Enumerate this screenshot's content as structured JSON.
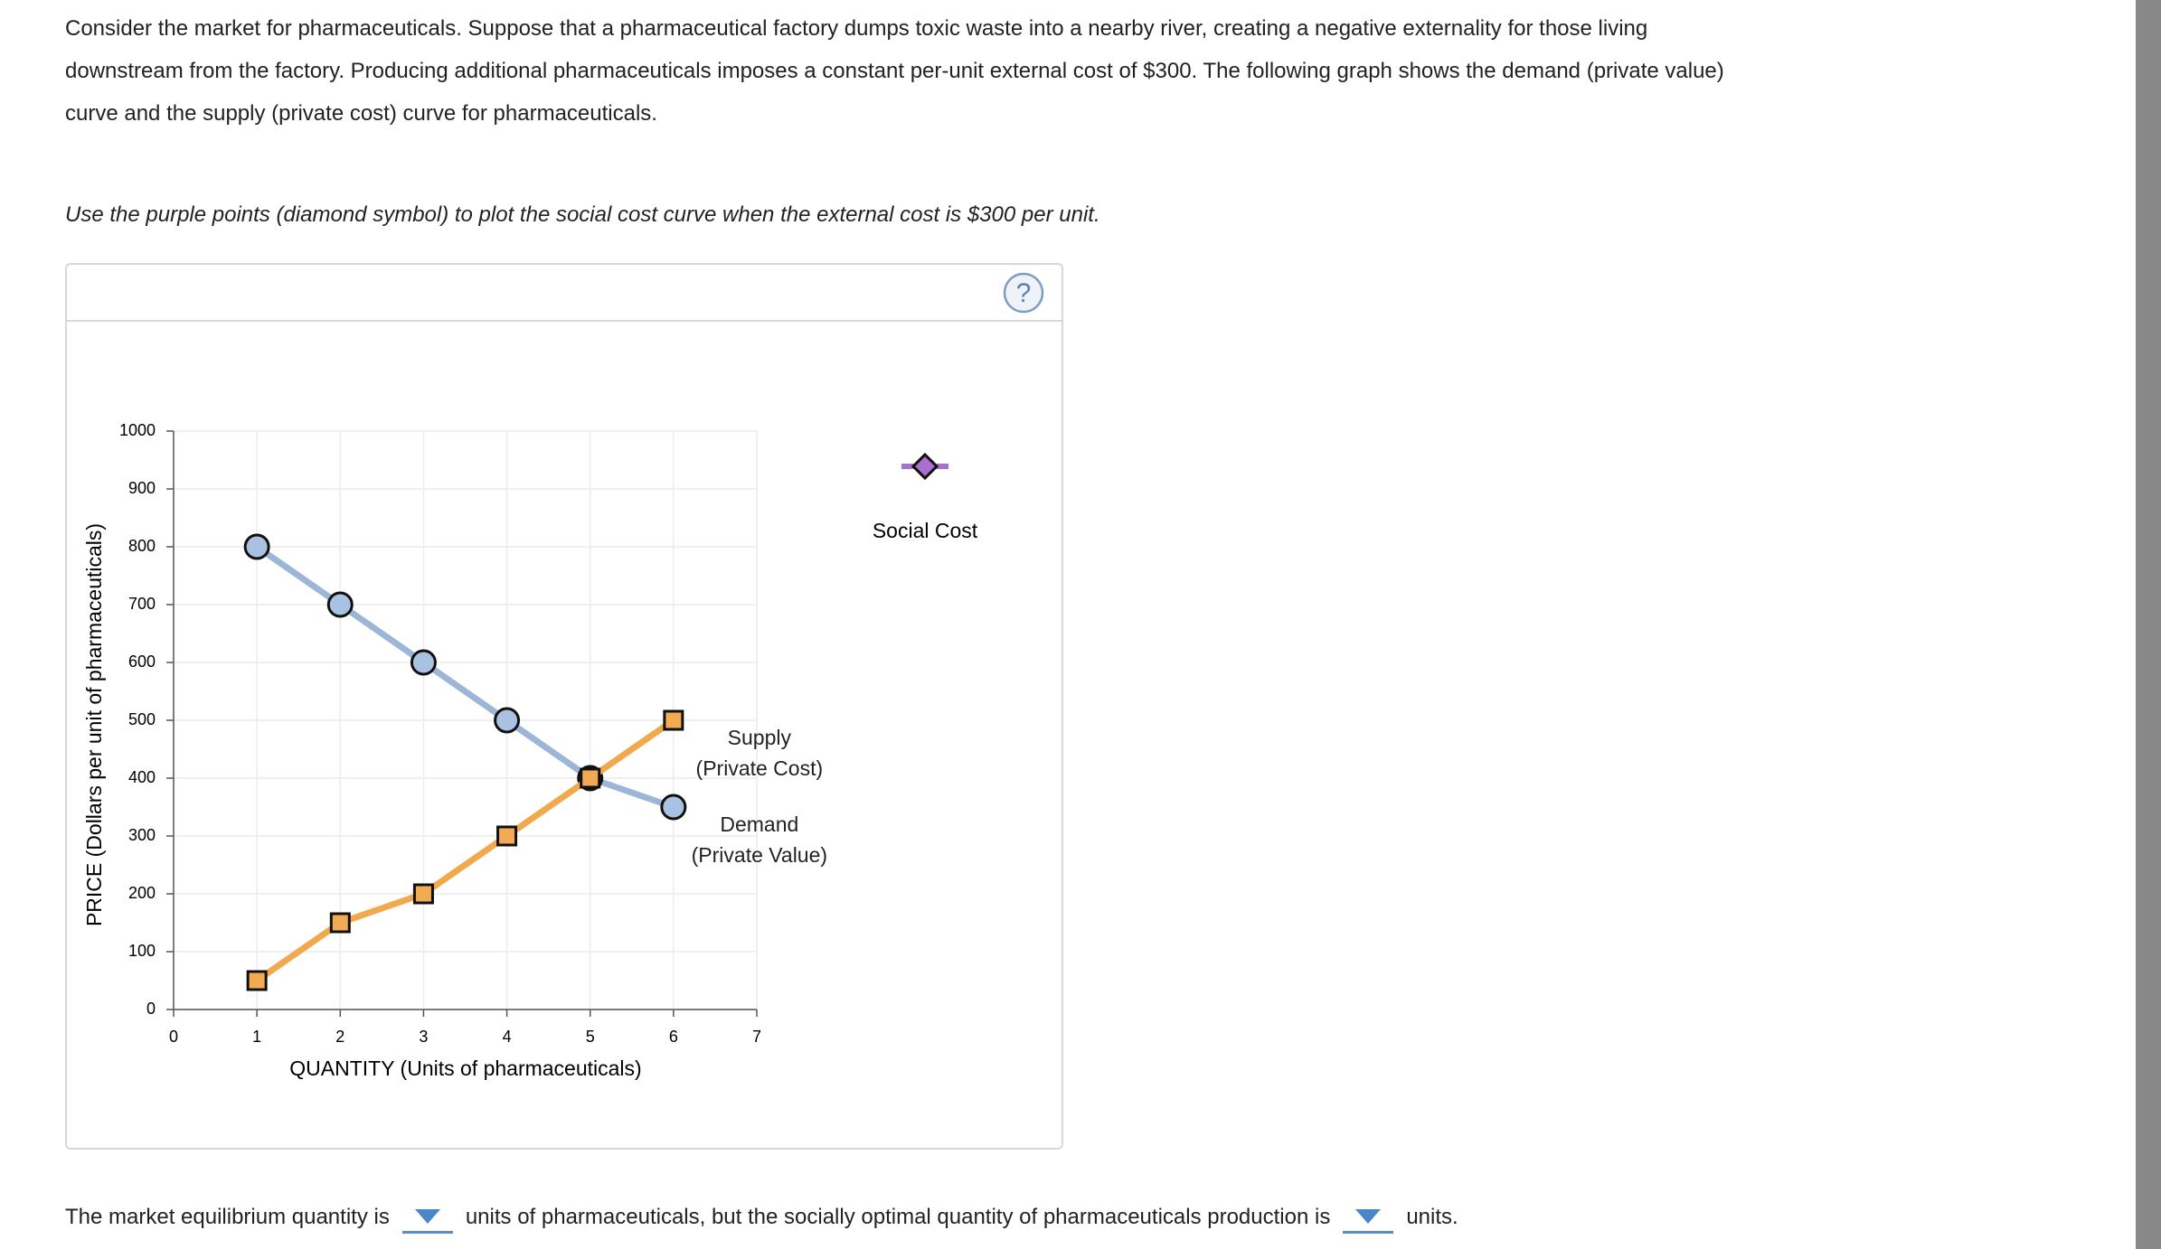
{
  "intro": "Consider the market for pharmaceuticals. Suppose that a pharmaceutical factory dumps toxic waste into a nearby river, creating a negative externality for those living downstream from the factory. Producing additional pharmaceuticals imposes a constant per-unit external cost of $300. The following graph shows the demand (private value) curve and the supply (private cost) curve for pharmaceuticals.",
  "instruction": "Use the purple points (diamond symbol) to plot the social cost curve when the external cost is $300 per unit.",
  "chart_data": {
    "type": "line",
    "x": [
      1,
      2,
      3,
      4,
      5,
      6
    ],
    "series": [
      {
        "name": "Demand\n(Private Value)",
        "color": "#9cb6d8",
        "marker": "circle",
        "marker_color": "#a9c2e2",
        "values": [
          800,
          700,
          600,
          500,
          400,
          350
        ]
      },
      {
        "name": "Supply\n(Private Cost)",
        "color": "#f1a94e",
        "marker": "square",
        "marker_color": "#f3aa55",
        "values": [
          50,
          150,
          200,
          300,
          400,
          500
        ]
      }
    ],
    "xlim": [
      0,
      7
    ],
    "xticks": [
      0,
      1,
      2,
      3,
      4,
      5,
      6,
      7
    ],
    "ylim": [
      0,
      1000
    ],
    "yticks": [
      0,
      100,
      200,
      300,
      400,
      500,
      600,
      700,
      800,
      900,
      1000
    ],
    "xlabel": "QUANTITY (Units of pharmaceuticals)",
    "ylabel": "PRICE (Dollars per unit of pharmaceuticals)",
    "grid": true,
    "palette": {
      "name": "Social Cost",
      "color": "#a86fce",
      "marker": "diamond"
    }
  },
  "question": {
    "part1": "The market equilibrium quantity is",
    "part2": "units of pharmaceuticals, but the socially optimal quantity of pharmaceuticals production is",
    "part3": "units."
  }
}
